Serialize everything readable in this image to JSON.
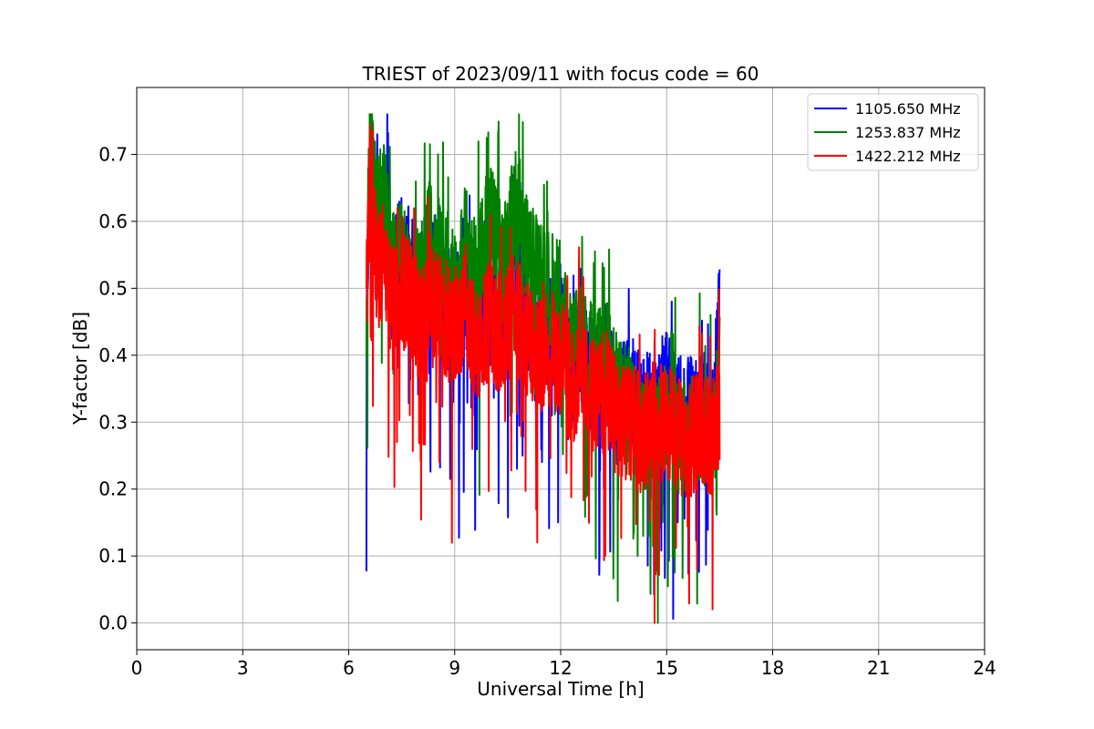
{
  "chart_data": {
    "type": "line",
    "title": "TRIEST of 2023/09/11 with focus code = 60",
    "xlabel": "Universal Time [h]",
    "ylabel": "Y-factor [dB]",
    "xlim": [
      0,
      24
    ],
    "ylim": [
      -0.04,
      0.8
    ],
    "xticks": [
      0,
      3,
      6,
      9,
      12,
      15,
      18,
      21,
      24
    ],
    "xtick_labels": [
      "0",
      "3",
      "6",
      "9",
      "12",
      "15",
      "18",
      "21",
      "24"
    ],
    "yticks": [
      0.0,
      0.1,
      0.2,
      0.3,
      0.4,
      0.5,
      0.6,
      0.7
    ],
    "ytick_labels": [
      "0.0",
      "0.1",
      "0.2",
      "0.3",
      "0.4",
      "0.5",
      "0.6",
      "0.7"
    ],
    "grid": true,
    "legend_position": "top-right",
    "series": [
      {
        "name": "1105.650 MHz",
        "color": "#0000ff",
        "x": [
          6.5,
          6.6,
          6.7,
          6.8,
          7.0,
          7.2,
          7.5,
          7.8,
          8.0,
          8.3,
          8.6,
          9.0,
          9.3,
          9.6,
          10.0,
          10.3,
          10.7,
          11.0,
          11.3,
          11.6,
          12.0,
          12.3,
          12.6,
          13.0,
          13.3,
          13.6,
          14.0,
          14.3,
          14.6,
          15.0,
          15.3,
          15.6,
          16.0,
          16.3,
          16.5
        ],
        "y": [
          0.4,
          0.72,
          0.65,
          0.58,
          0.62,
          0.5,
          0.56,
          0.52,
          0.48,
          0.55,
          0.5,
          0.45,
          0.5,
          0.42,
          0.47,
          0.44,
          0.52,
          0.46,
          0.4,
          0.43,
          0.45,
          0.38,
          0.4,
          0.36,
          0.38,
          0.33,
          0.35,
          0.3,
          0.33,
          0.35,
          0.32,
          0.3,
          0.34,
          0.3,
          0.5
        ]
      },
      {
        "name": "1253.837 MHz",
        "color": "#008000",
        "x": [
          6.5,
          6.6,
          6.7,
          6.8,
          7.0,
          7.2,
          7.5,
          7.8,
          8.0,
          8.3,
          8.6,
          9.0,
          9.3,
          9.6,
          10.0,
          10.3,
          10.7,
          11.0,
          11.3,
          11.6,
          12.0,
          12.3,
          12.6,
          13.0,
          13.3,
          13.6,
          14.0,
          14.3,
          14.6,
          15.0,
          15.3,
          15.6,
          16.0,
          16.3,
          16.5
        ],
        "y": [
          0.43,
          0.75,
          0.66,
          0.6,
          0.64,
          0.52,
          0.55,
          0.5,
          0.5,
          0.58,
          0.55,
          0.5,
          0.57,
          0.52,
          0.6,
          0.55,
          0.62,
          0.56,
          0.52,
          0.5,
          0.48,
          0.4,
          0.42,
          0.38,
          0.4,
          0.34,
          0.32,
          0.28,
          0.3,
          0.3,
          0.28,
          0.27,
          0.3,
          0.25,
          0.4
        ]
      },
      {
        "name": "1422.212 MHz",
        "color": "#ff0000",
        "x": [
          6.5,
          6.6,
          6.7,
          6.8,
          7.0,
          7.2,
          7.5,
          7.8,
          8.0,
          8.3,
          8.6,
          9.0,
          9.3,
          9.6,
          10.0,
          10.3,
          10.7,
          11.0,
          11.3,
          11.6,
          12.0,
          12.3,
          12.6,
          13.0,
          13.3,
          13.6,
          14.0,
          14.3,
          14.6,
          15.0,
          15.3,
          15.6,
          16.0,
          16.3,
          16.5
        ],
        "y": [
          0.48,
          0.66,
          0.58,
          0.52,
          0.55,
          0.47,
          0.5,
          0.48,
          0.45,
          0.5,
          0.46,
          0.44,
          0.48,
          0.42,
          0.45,
          0.43,
          0.47,
          0.43,
          0.4,
          0.41,
          0.4,
          0.35,
          0.38,
          0.33,
          0.35,
          0.3,
          0.3,
          0.28,
          0.3,
          0.3,
          0.28,
          0.27,
          0.3,
          0.27,
          0.33
        ]
      }
    ]
  }
}
